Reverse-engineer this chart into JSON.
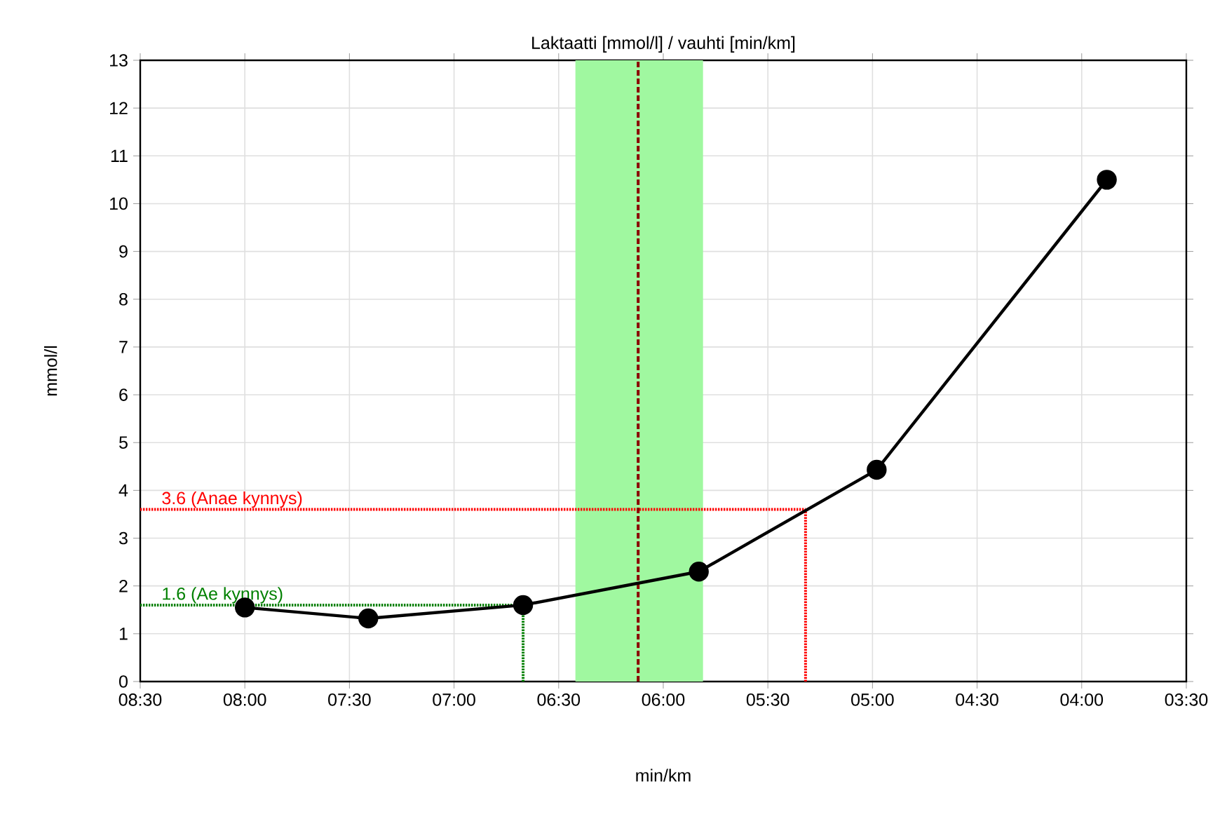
{
  "chart_data": {
    "type": "line",
    "title": "Laktaatti [mmol/l] / vauhti [min/km]",
    "xlabel": "min/km",
    "ylabel": "mmol/l",
    "x": [
      8.0,
      7.41,
      6.67,
      5.83,
      4.98,
      3.88
    ],
    "series": [
      {
        "color": "#000000",
        "values": [
          1.55,
          1.32,
          1.6,
          2.3,
          4.43,
          10.5
        ]
      }
    ],
    "marker": "circle",
    "line_style": "solid",
    "grid": true,
    "xlim": [
      8.5,
      3.5
    ],
    "xticks": [
      {
        "value": 8.5,
        "label": "08:30"
      },
      {
        "value": 8.0,
        "label": "08:00"
      },
      {
        "value": 7.5,
        "label": "07:30"
      },
      {
        "value": 7.0,
        "label": "07:00"
      },
      {
        "value": 6.5,
        "label": "06:30"
      },
      {
        "value": 6.0,
        "label": "06:00"
      },
      {
        "value": 5.5,
        "label": "05:30"
      },
      {
        "value": 5.0,
        "label": "05:00"
      },
      {
        "value": 4.5,
        "label": "04:30"
      },
      {
        "value": 4.0,
        "label": "04:00"
      },
      {
        "value": 3.5,
        "label": "03:30"
      }
    ],
    "ylim": [
      0,
      13
    ],
    "yticks": [
      0,
      1,
      2,
      3,
      4,
      5,
      6,
      7,
      8,
      9,
      10,
      11,
      12,
      13
    ],
    "ref_lines": [
      {
        "axis": "y",
        "value": 3.6,
        "label": "3.6 (Anae kynnys)",
        "color": "#ff0000",
        "line_style": "dotted"
      },
      {
        "axis": "x",
        "value": 5.32,
        "color": "#ff0000",
        "line_style": "dotted"
      },
      {
        "axis": "y",
        "value": 1.6,
        "label": "1.6 (Ae kynnys)",
        "color": "#008000",
        "line_style": "dotted"
      },
      {
        "axis": "x",
        "value": 6.67,
        "color": "#008000",
        "line_style": "dotted"
      },
      {
        "axis": "x",
        "value": 6.12,
        "color": "#8b0000",
        "line_style": "dashed"
      }
    ],
    "bands": [
      {
        "axis": "x",
        "from": 6.42,
        "to": 5.81,
        "color": "#a0f8a0"
      }
    ]
  }
}
